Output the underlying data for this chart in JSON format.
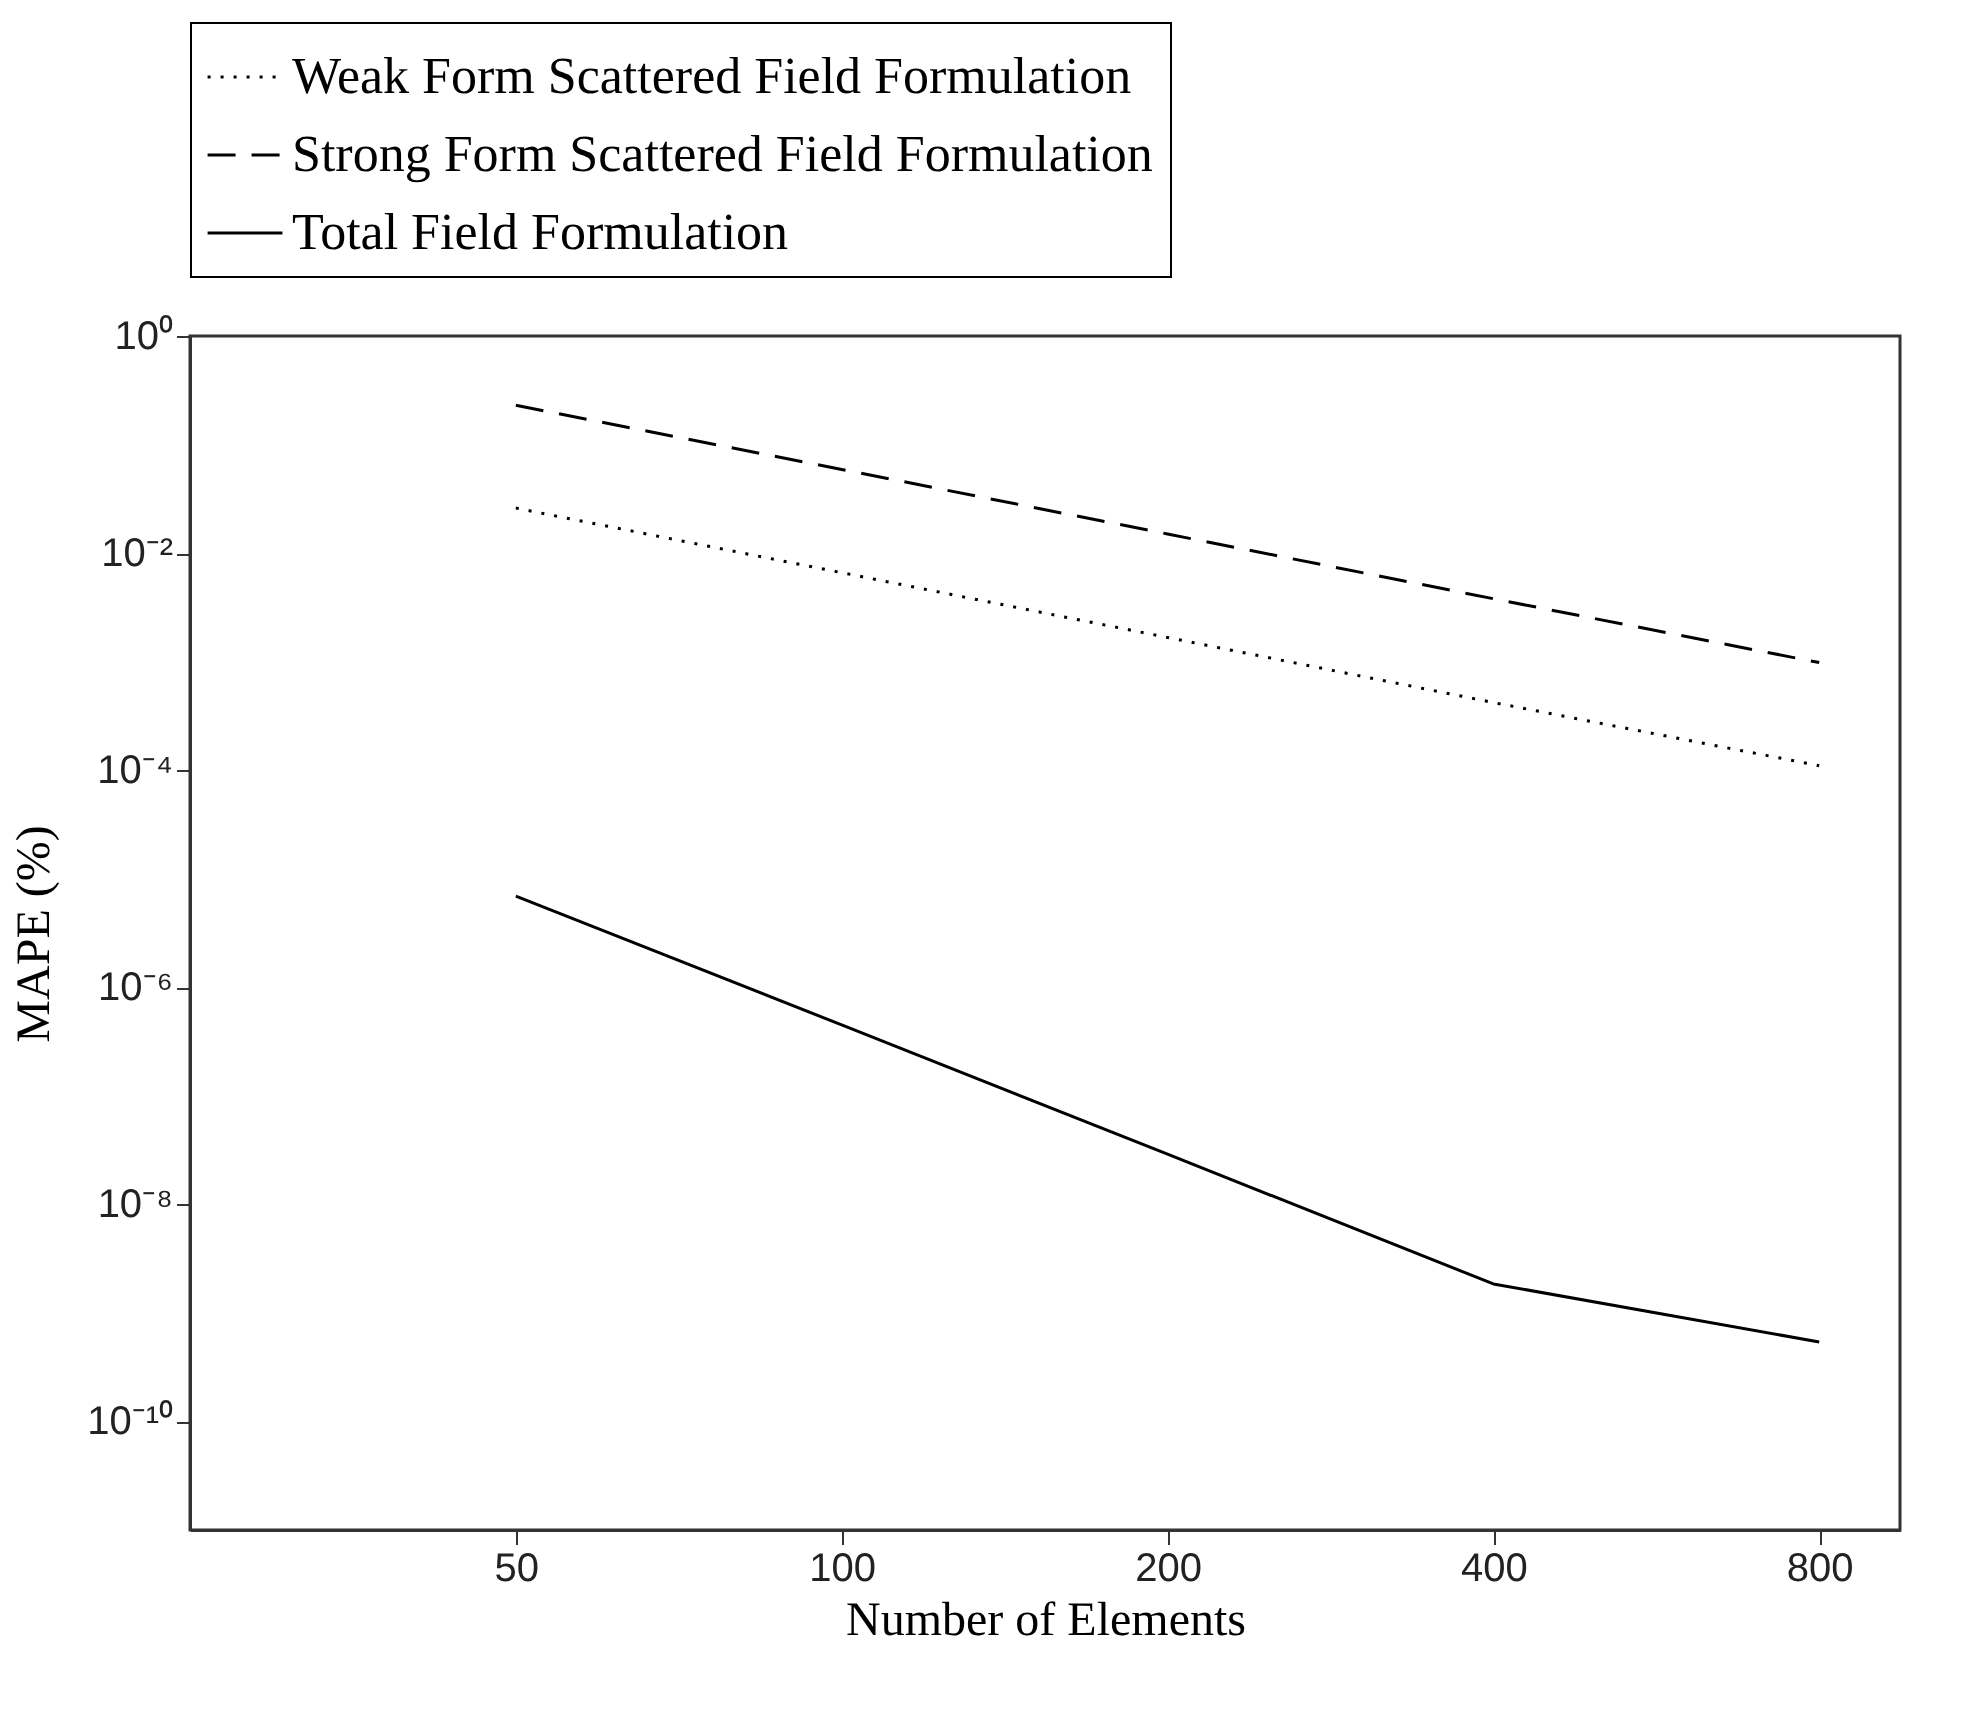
{
  "chart_data": {
    "type": "line",
    "xlabel": "Number of Elements",
    "ylabel": "MAPE (%)",
    "log": "xy",
    "grid": false,
    "legend": "top",
    "x": [
      50,
      100,
      200,
      400,
      800
    ],
    "xlim": [
      25,
      950
    ],
    "xticks": [
      50,
      100,
      200,
      400,
      800
    ],
    "ylim": [
      1e-11,
      1
    ],
    "yticks": [
      {
        "value": 1,
        "label": "10⁰"
      },
      {
        "value": 0.01,
        "label": "10⁻²"
      },
      {
        "value": 0.0001,
        "label": "10⁻⁴"
      },
      {
        "value": 1e-06,
        "label": "10⁻⁶"
      },
      {
        "value": 1e-08,
        "label": "10⁻⁸"
      },
      {
        "value": 1e-10,
        "label": "10⁻¹⁰"
      }
    ],
    "series": [
      {
        "name": "Weak Form Scattered Field Formulation",
        "color": "#000000",
        "line_style": "dotted",
        "values": [
          0.026,
          0.0066,
          0.00167,
          0.00042,
          0.00011
        ]
      },
      {
        "name": "Strong Form Scattered Field Formulation",
        "color": "#000000",
        "line_style": "dashed",
        "values": [
          0.23,
          0.059,
          0.015,
          0.0038,
          0.00098
        ]
      },
      {
        "name": "Total Field Formulation",
        "color": "#000000",
        "line_style": "solid",
        "values": [
          6.9e-06,
          4.5e-07,
          2.9e-08,
          1.85e-09,
          5.4e-10
        ]
      }
    ]
  }
}
